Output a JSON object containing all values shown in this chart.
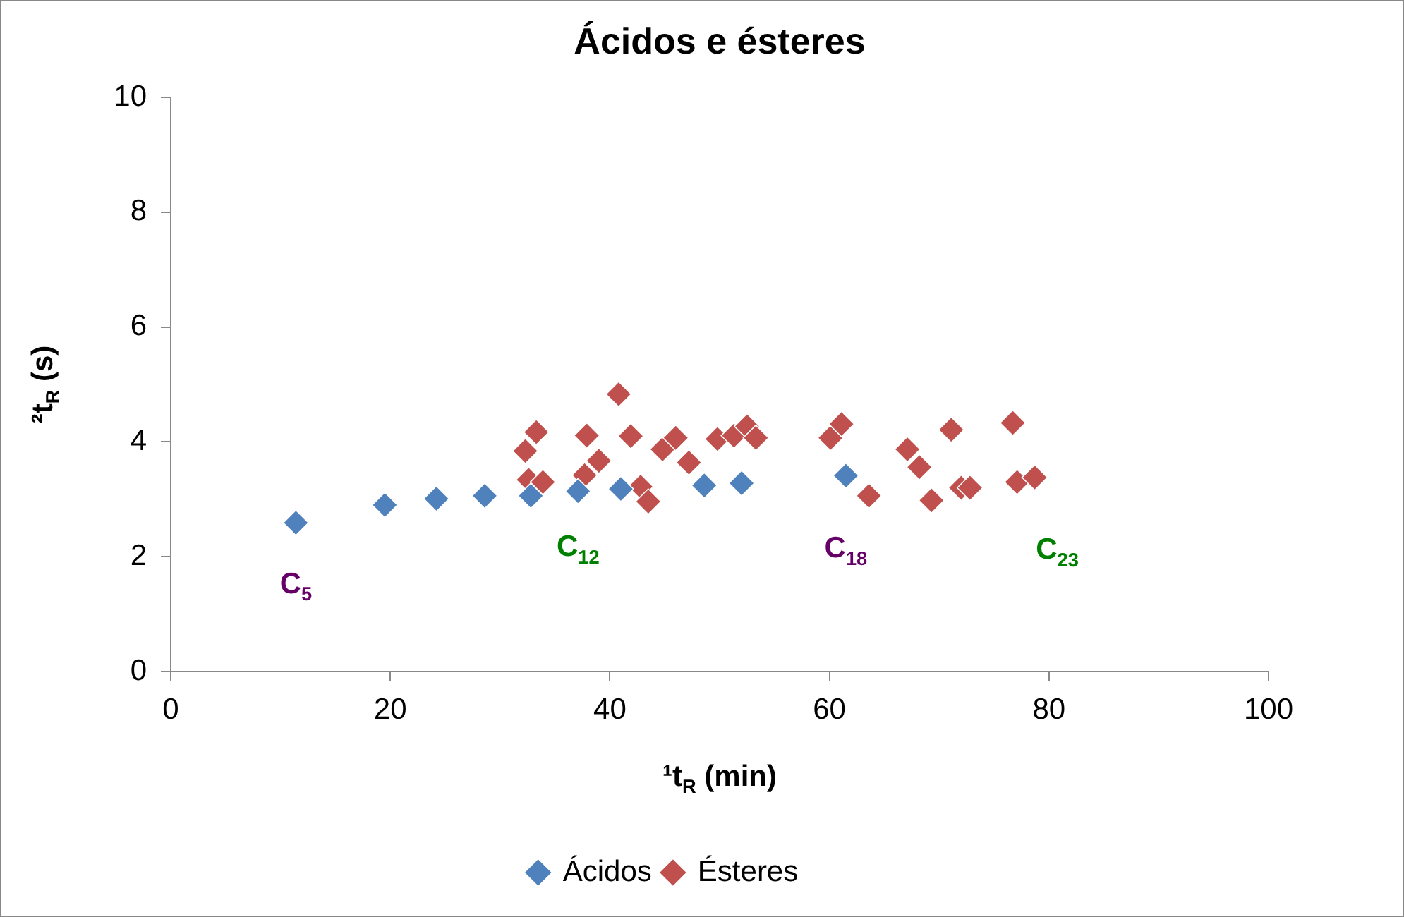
{
  "chart_data": {
    "type": "scatter",
    "title": "Ácidos e ésteres",
    "xlabel": "¹t$_{R}$ (min)",
    "ylabel": "²t$_{R}$ (s)",
    "xlim": [
      0,
      100
    ],
    "xticks": [
      0,
      20,
      40,
      60,
      80,
      100
    ],
    "ylim": [
      0,
      10
    ],
    "yticks": [
      0,
      2,
      4,
      6,
      8,
      10
    ],
    "grid": false,
    "legend": "bottom",
    "marker": "diamond",
    "series": [
      {
        "name": "Ácidos",
        "color": "#4f81bd",
        "x": [
          11.4,
          19.5,
          24.2,
          28.6,
          32.8,
          37.1,
          41.0,
          48.6,
          52.0,
          61.5
        ],
        "values": [
          2.59,
          2.9,
          3.01,
          3.06,
          3.06,
          3.14,
          3.18,
          3.24,
          3.28,
          3.41
        ]
      },
      {
        "name": "Ésteres",
        "color": "#c0504d",
        "x": [
          32.3,
          32.6,
          33.3,
          33.9,
          37.7,
          37.9,
          39.0,
          40.8,
          41.9,
          42.8,
          43.5,
          44.8,
          46.0,
          47.2,
          49.8,
          51.3,
          52.5,
          53.3,
          60.1,
          61.1,
          63.6,
          67.1,
          68.2,
          69.3,
          71.1,
          72.0,
          72.8,
          76.7,
          77.1,
          78.7
        ],
        "values": [
          3.84,
          3.34,
          4.17,
          3.3,
          3.42,
          4.11,
          3.67,
          4.83,
          4.1,
          3.22,
          2.96,
          3.87,
          4.07,
          3.64,
          4.05,
          4.11,
          4.27,
          4.07,
          4.07,
          4.31,
          3.06,
          3.87,
          3.56,
          2.98,
          4.21,
          3.2,
          3.2,
          4.33,
          3.3,
          3.38
        ]
      }
    ],
    "annotations": [
      {
        "text": "C$_{5}$",
        "x": 11.4,
        "y": 2.59
      },
      {
        "text": "C$_{12}$",
        "x": 37.1,
        "y": 3.14
      },
      {
        "text": "C$_{18}$",
        "x": 61.5,
        "y": 3.41
      },
      {
        "text": "C$_{23}$",
        "x": 78.7,
        "y": 3.38
      }
    ]
  }
}
